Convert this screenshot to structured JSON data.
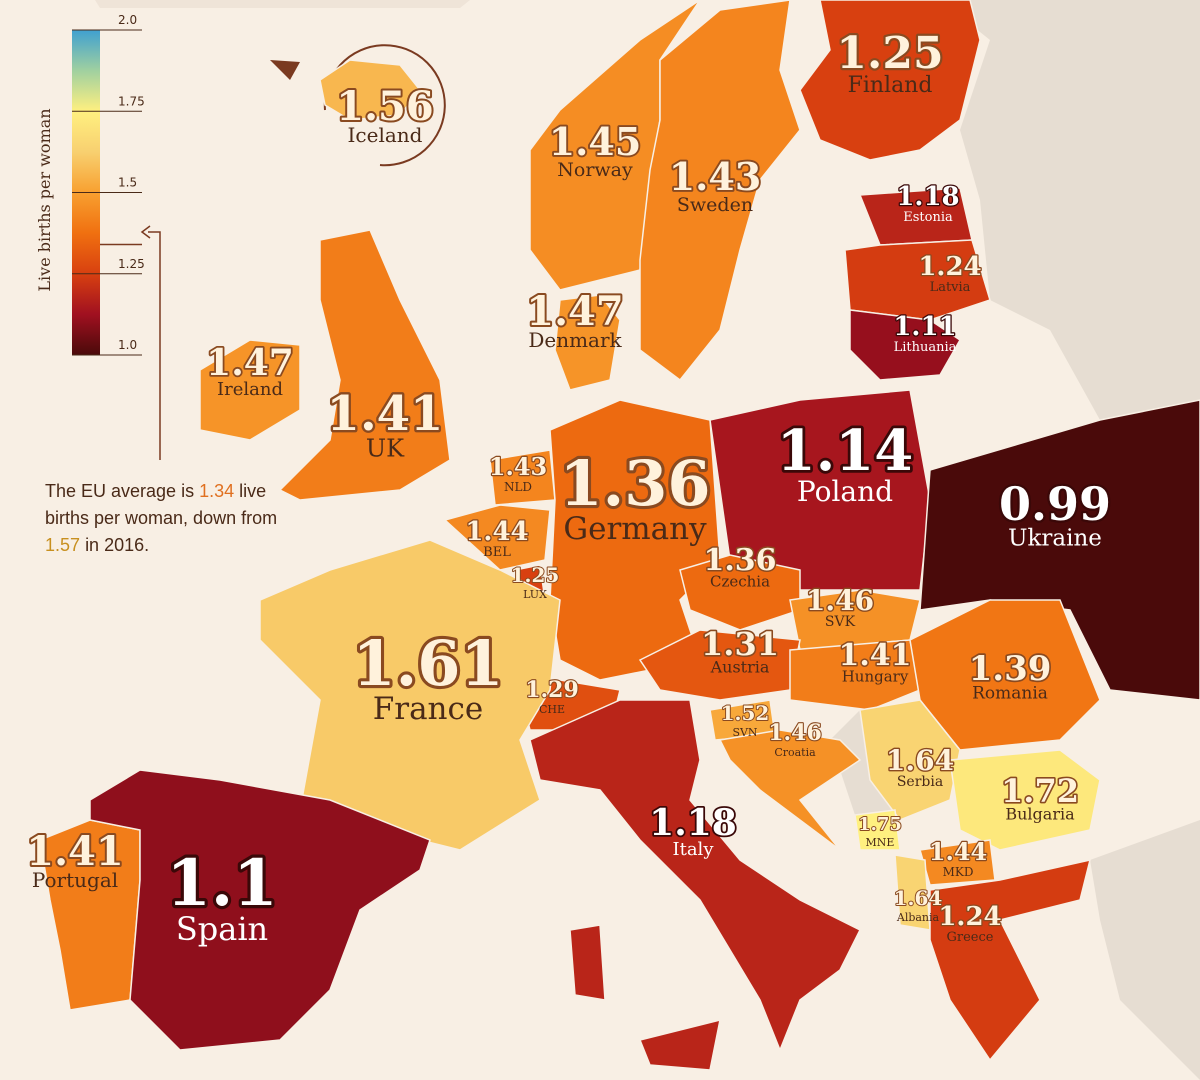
{
  "legend": {
    "title": "Live births per woman",
    "ylim": [
      1.0,
      2.0
    ],
    "yticks": [
      {
        "value": 1.0,
        "label": "1.0"
      },
      1.25,
      1.5,
      1.75,
      {
        "value": 2.0,
        "label": "2.0"
      }
    ],
    "colors": [
      "#4a0a0a",
      "#a01020",
      "#d84010",
      "#f07010",
      "#f8a030",
      "#f8d070",
      "#fff080",
      "#a0d0a0",
      "#40a0d0"
    ]
  },
  "note": {
    "before": "The EU average is",
    "eu_average": 1.34,
    "middle": "live births per woman, down from",
    "previous": 1.57,
    "after": "in 2016."
  },
  "countries": [
    {
      "name": "Iceland",
      "value": 1.56
    },
    {
      "name": "Finland",
      "value": 1.25
    },
    {
      "name": "Norway",
      "value": 1.45
    },
    {
      "name": "Sweden",
      "value": 1.43
    },
    {
      "name": "Estonia",
      "value": 1.18
    },
    {
      "name": "Latvia",
      "value": 1.24
    },
    {
      "name": "Lithuania",
      "value": 1.11
    },
    {
      "name": "Denmark",
      "value": 1.47
    },
    {
      "name": "Ireland",
      "value": 1.47
    },
    {
      "name": "UK",
      "value": 1.41
    },
    {
      "name": "NLD",
      "value": 1.43
    },
    {
      "name": "BEL",
      "value": 1.44
    },
    {
      "name": "LUX",
      "value": 1.25
    },
    {
      "name": "Germany",
      "value": 1.36
    },
    {
      "name": "Poland",
      "value": 1.14
    },
    {
      "name": "Ukraine",
      "value": 0.99
    },
    {
      "name": "Czechia",
      "value": 1.36
    },
    {
      "name": "SVK",
      "value": 1.46
    },
    {
      "name": "Austria",
      "value": 1.31
    },
    {
      "name": "Hungary",
      "value": 1.41
    },
    {
      "name": "Romania",
      "value": 1.39
    },
    {
      "name": "CHE",
      "value": 1.29
    },
    {
      "name": "France",
      "value": 1.61
    },
    {
      "name": "SVN",
      "value": 1.52
    },
    {
      "name": "Croatia",
      "value": 1.46
    },
    {
      "name": "Serbia",
      "value": 1.64
    },
    {
      "name": "Bulgaria",
      "value": 1.72
    },
    {
      "name": "MNE",
      "value": 1.75
    },
    {
      "name": "MKD",
      "value": 1.44
    },
    {
      "name": "Albania",
      "value": 1.64
    },
    {
      "name": "Greece",
      "value": 1.24
    },
    {
      "name": "Italy",
      "value": 1.18
    },
    {
      "name": "Portugal",
      "value": 1.41
    },
    {
      "name": "Spain",
      "value": 1.1
    }
  ]
}
